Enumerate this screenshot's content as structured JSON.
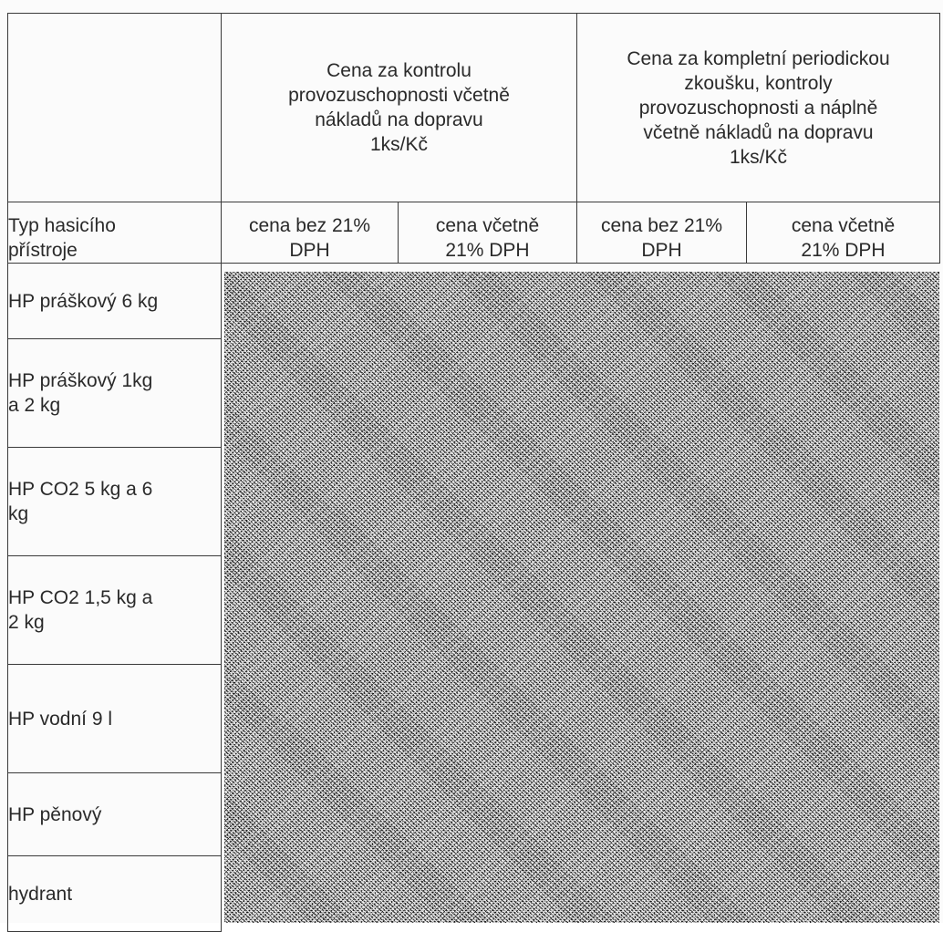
{
  "table": {
    "group_headers": [
      {
        "lines": [
          "Cena za kontrolu",
          "provozuschopnosti včetně",
          "nákladů na dopravu",
          "1ks/Kč"
        ]
      },
      {
        "lines": [
          "Cena za kompletní periodickou",
          "zkoušku, kontroly",
          "provozuschopnosti a náplně",
          "včetně nákladů na dopravu",
          "1ks/Kč"
        ]
      }
    ],
    "type_header": [
      "Typ hasicího",
      "přístroje"
    ],
    "sub_headers": [
      [
        "cena bez  21%",
        "DPH"
      ],
      [
        "cena včetně",
        "21% DPH"
      ],
      [
        "cena bez  21%",
        "DPH"
      ],
      [
        "cena včetně",
        "21% DPH"
      ]
    ],
    "rows": [
      [
        "HP práškový 6 kg"
      ],
      [
        "HP práškový 1kg",
        "a 2 kg"
      ],
      [
        "HP CO2 5 kg a 6",
        "kg"
      ],
      [
        "HP CO2 1,5 kg a",
        "2 kg"
      ],
      [
        "HP vodní 9 l"
      ],
      [
        "HP pěnový"
      ],
      [
        "hydrant"
      ]
    ]
  },
  "colors": {
    "border": "#3a3a3a",
    "text": "#2a2a2a",
    "paper": "#fbfbfb"
  }
}
